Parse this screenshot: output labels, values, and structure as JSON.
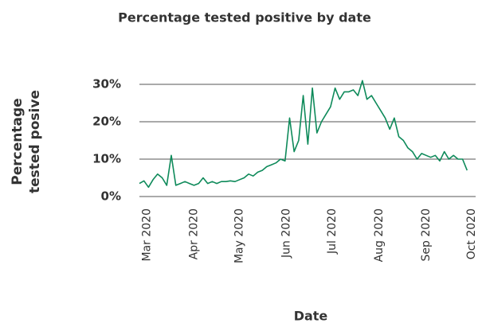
{
  "chart_data": {
    "type": "line",
    "title": "Percentage tested positive by date",
    "ylabel": [
      "Percentage",
      "tested posive"
    ],
    "xlabel": "Date",
    "x": [
      -5,
      -2,
      1,
      4,
      7,
      10,
      13,
      16,
      19,
      22,
      25,
      28,
      31,
      34,
      37,
      40,
      43,
      46,
      49,
      52,
      55,
      58,
      61,
      64,
      67,
      70,
      73,
      76,
      79,
      82,
      85,
      88,
      91,
      94,
      97,
      100,
      103,
      106,
      109,
      112,
      115,
      118,
      121,
      124,
      127,
      130,
      133,
      136,
      139,
      142,
      145,
      148,
      151,
      154,
      157,
      160,
      163,
      166,
      169,
      172,
      175,
      178,
      181,
      184,
      187,
      190,
      193,
      196,
      199,
      202,
      205,
      208,
      211
    ],
    "series": [
      {
        "color": "#0e8a5a",
        "values": [
          3.5,
          4.2,
          2.5,
          4.5,
          6,
          5,
          3,
          11,
          3,
          3.5,
          4,
          3.5,
          3,
          3.5,
          5,
          3.5,
          4,
          3.5,
          4,
          4,
          4.2,
          4,
          4.5,
          5,
          6,
          5.5,
          6.5,
          7,
          8,
          8.5,
          9,
          10,
          9.5,
          21,
          12,
          15,
          27,
          14,
          29,
          17,
          20,
          22,
          24,
          29,
          26,
          28,
          28,
          28.5,
          27,
          31,
          26,
          27,
          25,
          23,
          21,
          18,
          21,
          16,
          15,
          13,
          12,
          10,
          11.5,
          11,
          10.5,
          11,
          9.5,
          12,
          10,
          11,
          10,
          10,
          7
        ]
      }
    ],
    "xlim": [
      -5,
      214
    ],
    "xticks": [
      {
        "value": 0,
        "label": "Mar 2020"
      },
      {
        "value": 31,
        "label": "Apr 2020"
      },
      {
        "value": 61,
        "label": "May 2020"
      },
      {
        "value": 92,
        "label": "Jun 2020"
      },
      {
        "value": 122,
        "label": "Jul 2020"
      },
      {
        "value": 153,
        "label": "Aug 2020"
      },
      {
        "value": 184,
        "label": "Sep 2020"
      },
      {
        "value": 214,
        "label": "Oct 2020"
      }
    ],
    "ylim": [
      0,
      32
    ],
    "yticks": [
      {
        "value": 0,
        "label": "0%"
      },
      {
        "value": 10,
        "label": "10%"
      },
      {
        "value": 20,
        "label": "20%"
      },
      {
        "value": 30,
        "label": "30%"
      }
    ],
    "grid": true
  }
}
